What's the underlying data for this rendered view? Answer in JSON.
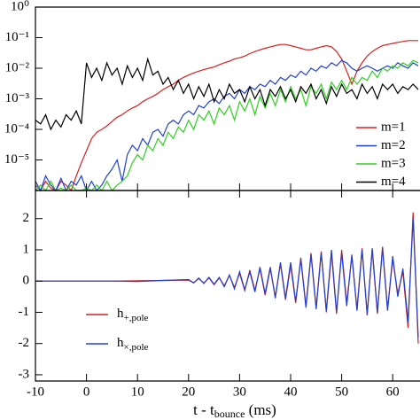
{
  "chart_data": [
    {
      "type": "line",
      "log_scale": true,
      "x": [
        -10,
        -9,
        -8,
        -7,
        -6,
        -5,
        -4,
        -3,
        -2,
        -1,
        0,
        1,
        2,
        3,
        4,
        5,
        6,
        7,
        8,
        9,
        10,
        11,
        12,
        13,
        14,
        15,
        16,
        17,
        18,
        19,
        20,
        21,
        22,
        23,
        24,
        25,
        26,
        27,
        28,
        29,
        30,
        31,
        32,
        33,
        34,
        35,
        36,
        37,
        38,
        39,
        40,
        41,
        42,
        43,
        44,
        45,
        46,
        47,
        48,
        49,
        50,
        51,
        52,
        53,
        54,
        55,
        56,
        57,
        58,
        59,
        60,
        61,
        62,
        63,
        64,
        65
      ],
      "xlim": [
        -10,
        65.35
      ],
      "ylim": [
        1e-06,
        1
      ],
      "yticks": [
        {
          "value": 1,
          "label": "10⁰"
        },
        {
          "value": 0.1,
          "label": "10⁻¹"
        },
        {
          "value": 0.01,
          "label": "10⁻²"
        },
        {
          "value": 0.001,
          "label": "10⁻³"
        },
        {
          "value": 0.0001,
          "label": "10⁻⁴"
        },
        {
          "value": 1e-05,
          "label": "10⁻⁵"
        }
      ],
      "series": [
        {
          "name": "m=1",
          "color": "#d62020",
          "values": [
            1.5e-06,
            1e-06,
            2e-06,
            1.2e-06,
            1e-06,
            2e-06,
            1.5e-06,
            1e-06,
            3e-06,
            8e-06,
            2e-05,
            5e-05,
            8e-05,
            0.0001,
            0.00013,
            0.00018,
            0.00025,
            0.0003,
            0.0004,
            0.0005,
            0.0006,
            0.0008,
            0.001,
            0.0012,
            0.0015,
            0.002,
            0.0025,
            0.003,
            0.004,
            0.005,
            0.006,
            0.007,
            0.008,
            0.009,
            0.01,
            0.011,
            0.013,
            0.015,
            0.017,
            0.02,
            0.022,
            0.025,
            0.03,
            0.035,
            0.04,
            0.045,
            0.05,
            0.055,
            0.06,
            0.06,
            0.055,
            0.05,
            0.045,
            0.04,
            0.04,
            0.045,
            0.05,
            0.055,
            0.05,
            0.035,
            0.02,
            0.008,
            0.003,
            0.008,
            0.015,
            0.025,
            0.035,
            0.045,
            0.055,
            0.06,
            0.065,
            0.07,
            0.075,
            0.08,
            0.08,
            0.08
          ]
        },
        {
          "name": "m=2",
          "color": "#2040d0",
          "values": [
            2e-06,
            1e-06,
            3e-06,
            1.5e-06,
            1e-06,
            2.5e-06,
            1e-06,
            2e-06,
            1.5e-06,
            3e-06,
            1e-06,
            2e-06,
            1e-06,
            1.5e-06,
            3e-06,
            5e-06,
            1e-05,
            2e-06,
            1.5e-05,
            3e-05,
            2e-05,
            5e-05,
            3e-05,
            8e-05,
            0.0001,
            6e-05,
            0.00015,
            0.0002,
            0.00015,
            0.0003,
            0.0004,
            0.0003,
            0.0006,
            0.0005,
            0.0008,
            0.001,
            0.0007,
            0.0012,
            0.0015,
            0.001,
            0.002,
            0.0015,
            0.0025,
            0.002,
            0.003,
            0.0025,
            0.004,
            0.003,
            0.005,
            0.004,
            0.006,
            0.005,
            0.008,
            0.006,
            0.01,
            0.008,
            0.012,
            0.01,
            0.015,
            0.012,
            0.018,
            0.015,
            0.01,
            0.008,
            0.01,
            0.012,
            0.01,
            0.008,
            0.01,
            0.012,
            0.01,
            0.015,
            0.012,
            0.01,
            0.015,
            0.012
          ]
        },
        {
          "name": "m=3",
          "color": "#30d020",
          "values": [
            1e-06,
            1.5e-06,
            1e-06,
            2e-06,
            1e-06,
            1.2e-06,
            1e-06,
            1.5e-06,
            1e-06,
            1e-06,
            1.2e-06,
            1e-06,
            1.5e-06,
            1e-06,
            2e-06,
            1e-06,
            1.5e-06,
            2e-06,
            3e-06,
            8e-06,
            1.5e-05,
            1e-05,
            3e-05,
            2e-05,
            5e-05,
            3e-05,
            8e-05,
            5e-05,
            0.00012,
            8e-05,
            0.0002,
            0.0001,
            0.0003,
            0.0002,
            0.0004,
            0.00015,
            0.0005,
            0.0003,
            0.0006,
            0.0002,
            0.0008,
            0.0004,
            0.001,
            0.0003,
            0.0012,
            0.0005,
            0.0015,
            0.0006,
            0.002,
            0.0008,
            0.0025,
            0.001,
            0.002,
            0.0006,
            0.0025,
            0.0015,
            0.003,
            0.001,
            0.0035,
            0.002,
            0.004,
            0.002,
            0.005,
            0.003,
            0.005,
            0.004,
            0.008,
            0.005,
            0.01,
            0.008,
            0.012,
            0.01,
            0.015,
            0.012,
            0.018,
            0.015
          ]
        },
        {
          "name": "m=4",
          "color": "#000000",
          "values": [
            0.0002,
            0.00015,
            0.0003,
            0.0001,
            0.0002,
            0.00012,
            0.0003,
            0.0002,
            0.0004,
            0.00015,
            0.015,
            0.005,
            0.01,
            0.004,
            0.015,
            0.006,
            0.01,
            0.003,
            0.012,
            0.005,
            0.01,
            0.004,
            0.02,
            0.006,
            0.008,
            0.003,
            0.005,
            0.002,
            0.004,
            0.0015,
            0.003,
            0.001,
            0.0025,
            0.0012,
            0.003,
            0.0008,
            0.002,
            0.001,
            0.003,
            0.0015,
            0.002,
            0.0008,
            0.0025,
            0.001,
            0.002,
            0.0006,
            0.002,
            0.0012,
            0.0025,
            0.001,
            0.002,
            0.0008,
            0.0025,
            0.0015,
            0.003,
            0.001,
            0.002,
            0.0007,
            0.0025,
            0.0012,
            0.003,
            0.0015,
            0.002,
            0.001,
            0.003,
            0.0015,
            0.0025,
            0.001,
            0.003,
            0.002,
            0.003,
            0.0015,
            0.0025,
            0.002,
            0.003,
            0.002
          ]
        }
      ]
    },
    {
      "type": "line",
      "log_scale": false,
      "x": [
        -10,
        -5,
        0,
        5,
        10,
        15,
        20,
        21,
        22,
        23,
        24,
        25,
        26,
        27,
        28,
        29,
        30,
        31,
        32,
        33,
        34,
        35,
        36,
        37,
        38,
        39,
        40,
        41,
        42,
        43,
        44,
        45,
        46,
        47,
        48,
        49,
        50,
        51,
        52,
        53,
        54,
        55,
        56,
        57,
        58,
        59,
        60,
        61,
        62,
        63,
        64,
        65
      ],
      "xlim": [
        -10,
        65.35
      ],
      "ylim": [
        -3.2,
        2.9
      ],
      "xticks": [
        -10,
        0,
        10,
        20,
        30,
        40,
        50,
        60
      ],
      "yticks": [
        -3,
        -2,
        -1,
        0,
        1,
        2
      ],
      "xlabel": [
        "t - t",
        "bounce",
        " (ms)"
      ],
      "series": [
        {
          "name": "h",
          "name_sub": "+,pole",
          "color": "#d62020",
          "values": [
            0,
            0,
            0,
            0,
            0.01,
            0.02,
            0.03,
            -0.05,
            0.08,
            -0.06,
            0.1,
            -0.12,
            0.1,
            -0.15,
            0.18,
            -0.2,
            0.25,
            -0.3,
            0.35,
            -0.3,
            0.4,
            -0.45,
            0.4,
            -0.5,
            0.55,
            -0.6,
            0.5,
            -0.7,
            0.75,
            -0.8,
            0.9,
            -0.85,
            0.95,
            -1.0,
            0.9,
            -1.05,
            1.0,
            -0.7,
            0.8,
            -0.9,
            1.05,
            -1.1,
            1.0,
            -1.05,
            1.1,
            -0.9,
            0.7,
            -0.4,
            0.3,
            -1.5,
            2.2,
            -2.0
          ]
        },
        {
          "name": "h",
          "name_sub": "×,pole",
          "color": "#2040d0",
          "values": [
            0,
            0,
            0,
            0,
            -0.01,
            0.02,
            0.05,
            -0.06,
            0.1,
            -0.08,
            0.12,
            -0.1,
            0.12,
            -0.18,
            0.2,
            -0.25,
            0.3,
            -0.28,
            0.3,
            -0.35,
            0.45,
            -0.4,
            0.45,
            -0.55,
            0.6,
            -0.55,
            0.6,
            -0.65,
            0.7,
            -0.85,
            0.85,
            -0.9,
            0.9,
            -0.95,
            1.0,
            -1.0,
            0.9,
            -0.8,
            0.85,
            -0.95,
            1.0,
            -1.05,
            1.05,
            -1.0,
            1.05,
            -0.95,
            0.8,
            -0.5,
            0.4,
            -1.3,
            2.0,
            -1.8
          ]
        }
      ]
    }
  ]
}
